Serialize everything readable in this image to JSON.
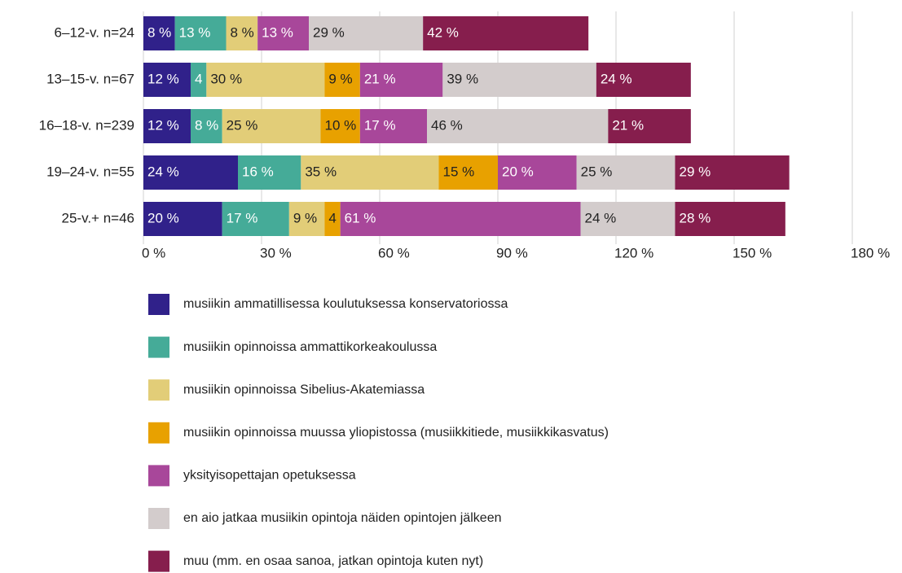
{
  "chart_data": {
    "type": "stacked-barh",
    "categories": [
      "6–12-v. n=24",
      "13–15-v. n=67",
      "16–18-v. n=239",
      "19–24-v. n=55",
      "25-v.+ n=46"
    ],
    "series": [
      {
        "name": "musiikin ammatillisessa koulutuksessa konservatoriossa",
        "color": "#30218a",
        "label_color": "#ffffff",
        "values": [
          8,
          12,
          12,
          24,
          20
        ],
        "value_labels": [
          "8 %",
          "12 %",
          "12 %",
          "24 %",
          "20 %"
        ]
      },
      {
        "name": "musiikin opinnoissa ammattikorkeakoulussa",
        "color": "#45ab98",
        "label_color": "#ffffff",
        "values": [
          13,
          4,
          8,
          16,
          17
        ],
        "value_labels": [
          "13 %",
          "4 %",
          "8 %",
          "16 %",
          "17 %"
        ]
      },
      {
        "name": "musiikin opinnoissa Sibelius-Akatemiassa",
        "color": "#e2cd78",
        "label_color": "#222222",
        "values": [
          8,
          30,
          25,
          35,
          9
        ],
        "value_labels": [
          "8 %",
          "30 %",
          "25 %",
          "35 %",
          "9 %"
        ]
      },
      {
        "name": "musiikin opinnoissa muussa yliopistossa (musiikkitiede, musiikkikasvatus)",
        "color": "#e8a100",
        "label_color": "#222222",
        "values": [
          null,
          9,
          10,
          15,
          4
        ],
        "value_labels": [
          null,
          "9 %",
          "10 %",
          "15 %",
          "4 %"
        ]
      },
      {
        "name": "yksityisopettajan opetuksessa",
        "color": "#a8479a",
        "label_color": "#ffffff",
        "values": [
          13,
          21,
          17,
          20,
          61
        ],
        "value_labels": [
          "13 %",
          "21 %",
          "17 %",
          "20 %",
          "61 %"
        ]
      },
      {
        "name": "en aio jatkaa musiikin opintoja näiden opintojen jälkeen",
        "color": "#d3cccc",
        "label_color": "#222222",
        "values": [
          29,
          39,
          46,
          25,
          24
        ],
        "value_labels": [
          "29 %",
          "39 %",
          "46 %",
          "25 %",
          "24 %"
        ]
      },
      {
        "name": "muu (mm. en osaa sanoa, jatkan opintoja kuten nyt)",
        "color": "#861e4d",
        "label_color": "#ffffff",
        "values": [
          42,
          24,
          21,
          29,
          28
        ],
        "value_labels": [
          "42 %",
          "24 %",
          "21 %",
          "29 %",
          "28 %"
        ]
      }
    ],
    "xlim": [
      0,
      180
    ],
    "xticks": [
      {
        "value": 0,
        "label": "0 %"
      },
      {
        "value": 30,
        "label": "30 %"
      },
      {
        "value": 60,
        "label": "60 %"
      },
      {
        "value": 90,
        "label": "90 %"
      },
      {
        "value": 120,
        "label": "120 %"
      },
      {
        "value": 150,
        "label": "150 %"
      },
      {
        "value": 180,
        "label": "180 %"
      }
    ],
    "grid": true
  }
}
